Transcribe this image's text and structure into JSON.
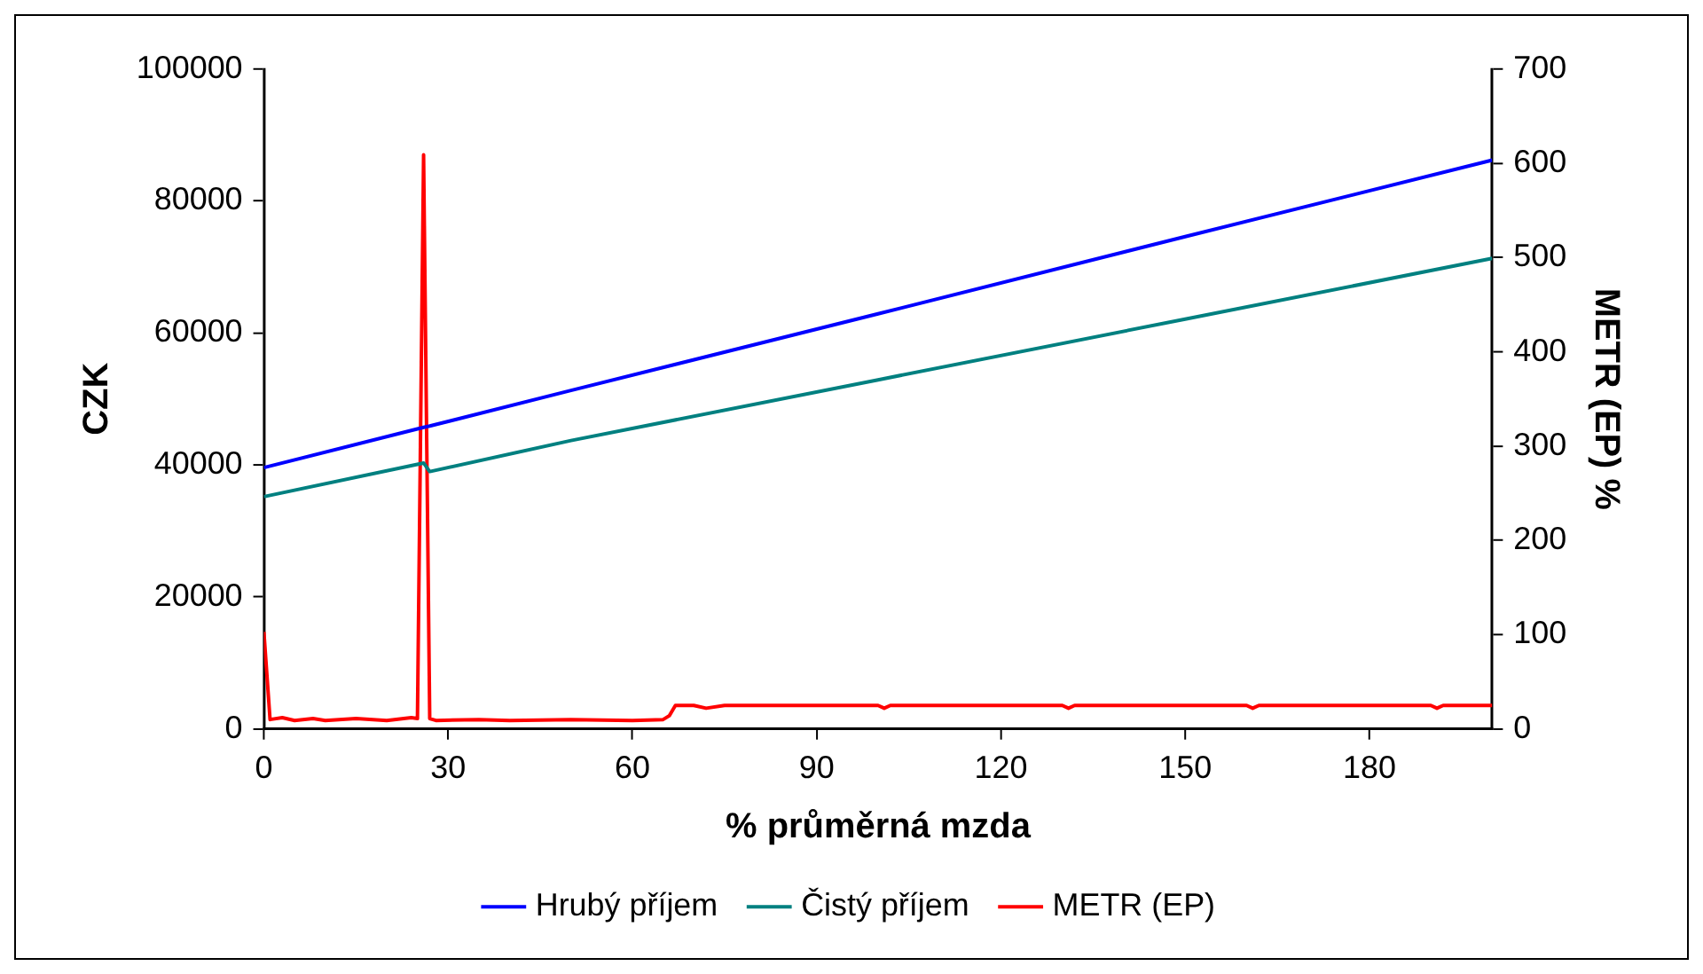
{
  "chart_data": {
    "type": "line",
    "xlabel": "% průměrná mzda",
    "ylabel": "CZK",
    "y2label": "METR (EP) %",
    "xlim": [
      0,
      200
    ],
    "xticks": [
      0,
      30,
      60,
      90,
      120,
      150,
      180
    ],
    "ylim": [
      0,
      100000
    ],
    "yticks": [
      0,
      20000,
      40000,
      60000,
      80000,
      100000
    ],
    "y2lim": [
      0,
      700
    ],
    "y2ticks": [
      0,
      100,
      200,
      300,
      400,
      500,
      600,
      700
    ],
    "grid": false,
    "legend": "bottom",
    "marker": "none",
    "line_style": "solid",
    "series": [
      {
        "name": "Hrubý příjem",
        "color": "#0000ff",
        "x": [
          0,
          26,
          27,
          50,
          100,
          150,
          200
        ],
        "values": [
          39600,
          45700,
          45900,
          51300,
          62900,
          74600,
          86200
        ]
      },
      {
        "name": "Čistý příjem",
        "color": "#008080",
        "x": [
          0,
          26,
          27,
          50,
          100,
          150,
          200
        ],
        "values": [
          35200,
          40300,
          39000,
          43700,
          52900,
          62100,
          71300
        ]
      },
      {
        "name": "METR (EP)",
        "color": "#ff0000",
        "axis": "y2",
        "x": [
          0,
          1,
          3,
          5,
          8,
          10,
          15,
          20,
          24,
          25,
          26,
          27,
          28,
          35,
          40,
          50,
          60,
          65,
          66,
          67,
          70,
          72,
          75,
          100,
          101,
          102,
          130,
          131,
          132,
          160,
          161,
          162,
          190,
          191,
          192,
          200
        ],
        "values": [
          103,
          10,
          12,
          9,
          11,
          9,
          11,
          9,
          12,
          11,
          609,
          11,
          9,
          10,
          9,
          10,
          9,
          10,
          14,
          25,
          25,
          22,
          25,
          25,
          22,
          25,
          25,
          22,
          25,
          25,
          22,
          25,
          25,
          22,
          25,
          25
        ]
      }
    ]
  }
}
